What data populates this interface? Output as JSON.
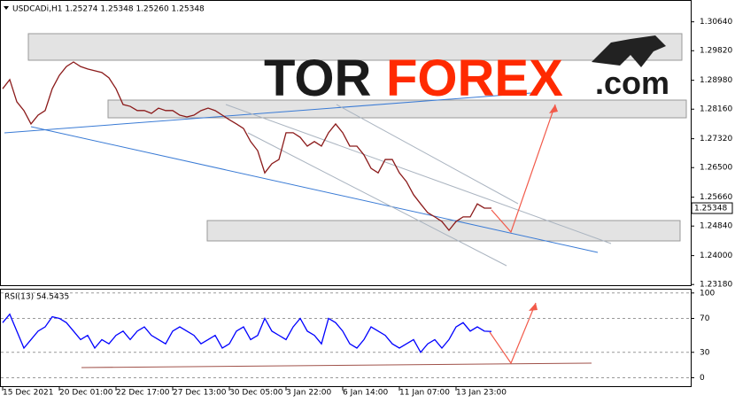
{
  "chart_data": [
    {
      "type": "line",
      "title": "USDCADi,H1 1.25274 1.25348 1.25260 1.25348",
      "categories": [
        "15 Dec 2021",
        null,
        null,
        null,
        null,
        null,
        null,
        null,
        "20 Dec 01:00",
        null,
        null,
        null,
        null,
        null,
        null,
        null,
        "22 Dec 17:00",
        null,
        null,
        null,
        null,
        null,
        null,
        null,
        "27 Dec 13:00",
        null,
        null,
        null,
        null,
        null,
        null,
        null,
        "30 Dec 05:00",
        null,
        null,
        null,
        null,
        null,
        null,
        null,
        "3 Jan 22:00",
        null,
        null,
        null,
        null,
        null,
        null,
        null,
        "6 Jan 14:00",
        null,
        null,
        null,
        null,
        null,
        null,
        null,
        "11 Jan 07:00",
        null,
        null,
        null,
        null,
        null,
        null,
        null,
        "13 Jan 23:00",
        null,
        null,
        null,
        null,
        null
      ],
      "series": [
        {
          "name": "USDCADi,H1",
          "color": "#8b1a1a",
          "values": [
            1.2874,
            1.29,
            1.2837,
            1.2812,
            1.2774,
            1.2799,
            1.2812,
            1.2874,
            1.2912,
            1.2937,
            1.295,
            1.2937,
            1.293,
            1.2925,
            1.292,
            1.2905,
            1.2874,
            1.2829,
            1.2824,
            1.2812,
            1.2812,
            1.2804,
            1.2819,
            1.2812,
            1.2812,
            1.2799,
            1.2794,
            1.2799,
            1.2812,
            1.2819,
            1.2812,
            1.2799,
            1.2786,
            1.2774,
            1.2761,
            1.2724,
            1.2698,
            1.2635,
            1.2661,
            1.2673,
            1.2749,
            1.2749,
            1.2736,
            1.2711,
            1.2724,
            1.2711,
            1.2749,
            1.2774,
            1.2749,
            1.2711,
            1.2711,
            1.2686,
            1.2648,
            1.2635,
            1.2673,
            1.2673,
            1.2635,
            1.261,
            1.2573,
            1.2547,
            1.2522,
            1.251,
            1.2497,
            1.2472,
            1.2497,
            1.251,
            1.251,
            1.2547,
            1.2535,
            1.25348
          ]
        }
      ],
      "last_price": 1.25348,
      "ylim": [
        1.2316,
        1.3126
      ],
      "yticks": [
        {
          "value": 1.2318,
          "label": "1.23180"
        },
        {
          "value": 1.24,
          "label": "1.24000"
        },
        {
          "value": 1.2484,
          "label": "1.24840"
        },
        {
          "value": 1.2566,
          "label": "1.25660"
        },
        {
          "value": 1.265,
          "label": "1.26500"
        },
        {
          "value": 1.2732,
          "label": "1.27320"
        },
        {
          "value": 1.2816,
          "label": "1.28160"
        },
        {
          "value": 1.2898,
          "label": "1.28980"
        },
        {
          "value": 1.2982,
          "label": "1.29820"
        },
        {
          "value": 1.3064,
          "label": "1.30640"
        }
      ]
    },
    {
      "type": "line",
      "title": "RSI(13) 54.5435",
      "series": [
        {
          "name": "RSI(13)",
          "color": "#0000ff",
          "values": [
            65,
            75,
            55,
            35,
            45,
            55,
            60,
            72,
            70,
            65,
            55,
            45,
            50,
            35,
            45,
            40,
            50,
            55,
            45,
            55,
            60,
            50,
            45,
            40,
            55,
            60,
            55,
            50,
            40,
            45,
            50,
            35,
            40,
            55,
            60,
            45,
            50,
            70,
            55,
            50,
            45,
            60,
            70,
            55,
            50,
            40,
            70,
            65,
            55,
            40,
            35,
            45,
            60,
            55,
            50,
            40,
            35,
            40,
            45,
            30,
            40,
            45,
            35,
            45,
            60,
            65,
            55,
            60,
            55,
            54.5435
          ]
        }
      ],
      "ylim": [
        -11,
        105
      ],
      "yticks": [
        0,
        30,
        70,
        100
      ],
      "grid": true
    }
  ],
  "watermark": {
    "brand_dark": "TOR",
    "brand_red": "FOREX",
    "suffix": ".com"
  }
}
